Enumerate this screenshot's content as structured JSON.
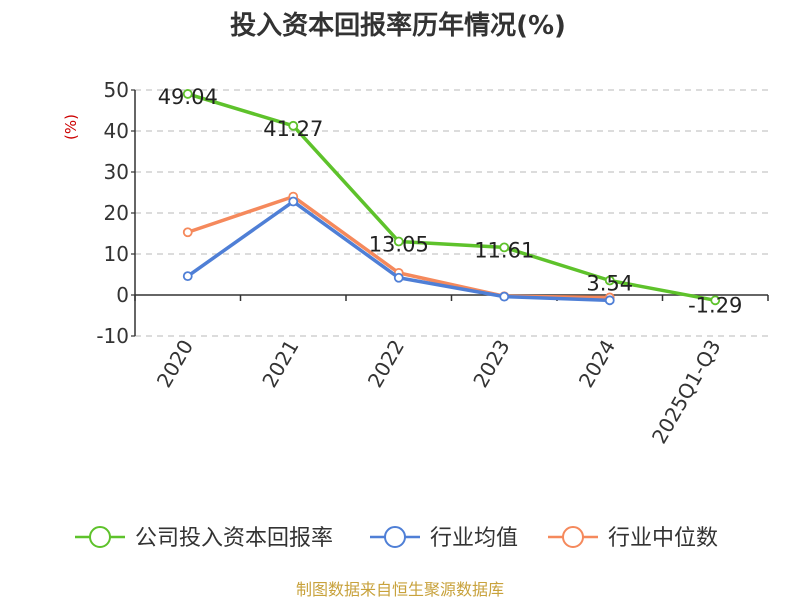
{
  "chart_data": {
    "type": "line",
    "title": "投入资本回报率历年情况(%)",
    "ylabel": "(%)",
    "categories": [
      "2020",
      "2021",
      "2022",
      "2023",
      "2024",
      "2025Q1-Q3"
    ],
    "ylim": [
      -10,
      50
    ],
    "yticks": [
      50,
      40,
      30,
      20,
      10,
      0,
      -10
    ],
    "grid": true,
    "legend_position": "bottom",
    "series": [
      {
        "name": "公司投入资本回报率",
        "color": "#5ec22b",
        "values": [
          49.04,
          41.27,
          13.05,
          11.61,
          3.54,
          -1.29
        ],
        "labels": [
          "49.04",
          "41.27",
          "13.05",
          "11.61",
          "3.54",
          "-1.29"
        ]
      },
      {
        "name": "行业均值",
        "color": "#4f7fd6",
        "values": [
          4.6,
          22.8,
          4.2,
          -0.4,
          -1.3,
          null
        ]
      },
      {
        "name": "行业中位数",
        "color": "#f5895c",
        "values": [
          15.3,
          24.0,
          5.4,
          -0.3,
          -0.6,
          null
        ]
      }
    ]
  },
  "footer": {
    "source": "制图数据来自恒生聚源数据库"
  }
}
